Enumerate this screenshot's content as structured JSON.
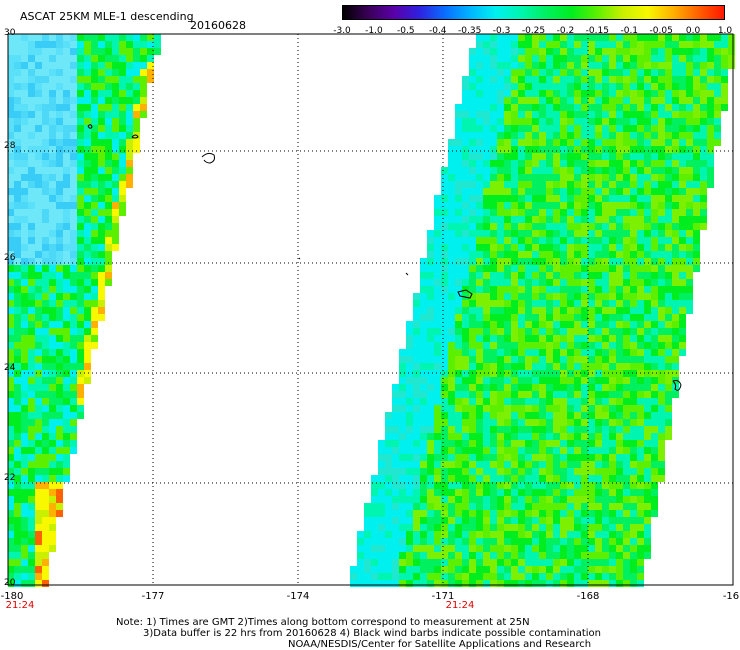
{
  "header": {
    "title": "ASCAT 25KM MLE-1 descending",
    "date": "20160628"
  },
  "colorbar": {
    "colors": [
      "#000000",
      "#3a0058",
      "#5a00a8",
      "#3020e0",
      "#0a6cff",
      "#00b4ff",
      "#00f0f0",
      "#00f6b0",
      "#00f060",
      "#00ee20",
      "#5cf000",
      "#c8f000",
      "#f8f800",
      "#ffb000",
      "#ff6000",
      "#ff1800"
    ],
    "labels": [
      "-3.0",
      "-1.0",
      "-0.5",
      "-0.4",
      "-0.35",
      "-0.3",
      "-0.25",
      "-0.2",
      "-0.15",
      "-0.1",
      "-0.05",
      "0.0",
      "1.0"
    ]
  },
  "axes": {
    "lon_labels": [
      "-180",
      "-177",
      "-174",
      "-171",
      "-168",
      "-16"
    ],
    "lat_labels": [
      "30",
      "28",
      "26",
      "24",
      "22",
      "20"
    ],
    "time_labels": [
      "21:24",
      "21:24"
    ]
  },
  "notes": {
    "line1": "Note: 1) Times are GMT 2)Times along bottom correspond to measurement at 25N",
    "line2": "3)Data buffer is 22 hrs from 20160628 4) Black wind barbs indicate possible contamination",
    "line3": "NOAA/NESDIS/Center for Satellite Applications and Research"
  }
}
